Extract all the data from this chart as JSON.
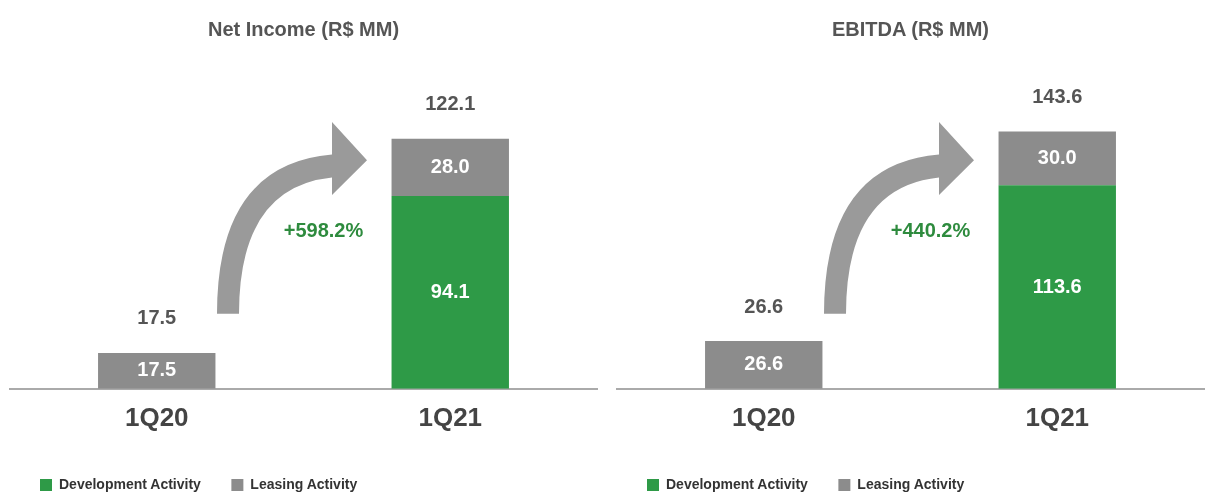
{
  "chart_data": [
    {
      "type": "bar",
      "title": "Net Income (R$ MM)",
      "categories": [
        "1Q20",
        "1Q21"
      ],
      "stacked": true,
      "legend": "bottom",
      "annotations": [
        "+598.2%"
      ],
      "totals": [
        "17.5",
        "122.1"
      ],
      "series": [
        {
          "name": "Development Activity",
          "color": "#2e9a47",
          "values": [
            null,
            94.1
          ],
          "value_labels": [
            null,
            "94.1"
          ]
        },
        {
          "name": "Leasing Activity",
          "color": "#8c8c8c",
          "values": [
            17.5,
            28.0
          ],
          "value_labels": [
            "17.5",
            "28.0"
          ]
        }
      ]
    },
    {
      "type": "bar",
      "title": "EBITDA (R$ MM)",
      "categories": [
        "1Q20",
        "1Q21"
      ],
      "stacked": true,
      "legend": "bottom",
      "annotations": [
        "+440.2%"
      ],
      "totals": [
        "26.6",
        "143.6"
      ],
      "series": [
        {
          "name": "Development Activity",
          "color": "#2e9a47",
          "values": [
            null,
            113.6
          ],
          "value_labels": [
            null,
            "113.6"
          ]
        },
        {
          "name": "Leasing Activity",
          "color": "#8c8c8c",
          "values": [
            26.6,
            30.0
          ],
          "value_labels": [
            "26.6",
            "30.0"
          ]
        }
      ]
    }
  ]
}
